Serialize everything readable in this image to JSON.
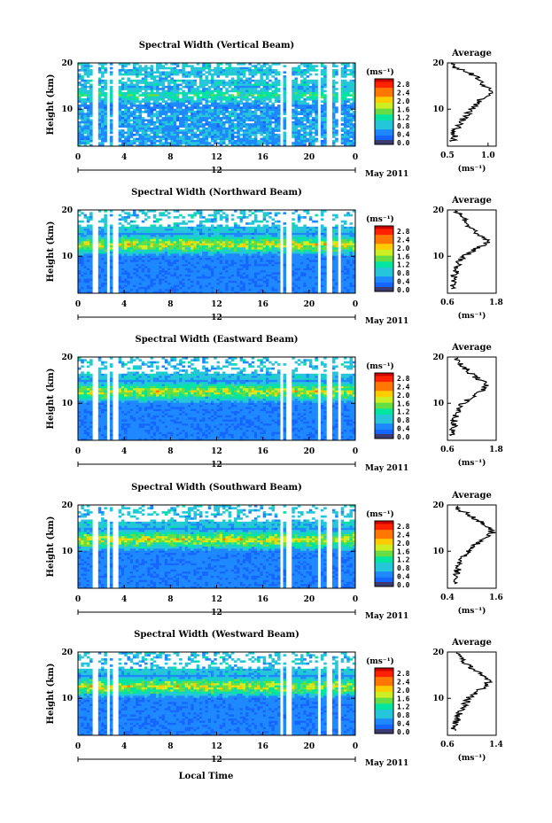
{
  "shared": {
    "x_ticks": [
      "0",
      "4",
      "8",
      "12",
      "16",
      "20",
      "0"
    ],
    "y_ticks": [
      "20",
      "10"
    ],
    "ylabel": "Height (km)",
    "date_label": "May 2011",
    "date_tick": "12",
    "unit_label": "(ms⁻¹)",
    "colorbar_ticks": [
      "2.8",
      "2.4",
      "2.0",
      "1.6",
      "1.2",
      "0.8",
      "0.4",
      "0.0"
    ],
    "avg_title": "Average",
    "avg_xlabel": "(ms⁻¹)",
    "xlabel_bottom": "Local Time",
    "colormap": [
      "#1a237e",
      "#1565ff",
      "#1e88ff",
      "#26c6da",
      "#00e5a0",
      "#66dd44",
      "#ccee22",
      "#ffcc00",
      "#ff7700",
      "#ff2200",
      "#cc0000"
    ]
  },
  "chart_data": [
    {
      "type": "heatmap",
      "title": "Spectral Width (Vertical Beam)",
      "xlabel": "",
      "ylabel": "Height (km)",
      "x_range": [
        0,
        24
      ],
      "y_range": [
        2,
        20
      ],
      "color_range": [
        0.0,
        3.0
      ],
      "average_profile": {
        "title": "Average",
        "xlim": [
          0.5,
          1.1
        ],
        "x_ticks": [
          "0.5",
          "1.0"
        ],
        "x_tick_values": [
          0.5,
          1.0
        ],
        "heights": [
          3,
          4,
          5,
          6,
          7,
          8,
          9,
          10,
          11,
          12,
          13,
          14,
          15,
          16,
          17,
          18,
          19,
          20
        ],
        "values": [
          0.55,
          0.6,
          0.58,
          0.62,
          0.65,
          0.7,
          0.75,
          0.8,
          0.85,
          0.9,
          1.0,
          1.05,
          0.95,
          0.9,
          0.85,
          0.75,
          0.6,
          0.55
        ]
      }
    },
    {
      "type": "heatmap",
      "title": "Spectral Width (Northward Beam)",
      "xlabel": "",
      "ylabel": "Height (km)",
      "x_range": [
        0,
        24
      ],
      "y_range": [
        2,
        20
      ],
      "color_range": [
        0.0,
        3.0
      ],
      "average_profile": {
        "title": "Average",
        "xlim": [
          0.6,
          1.8
        ],
        "x_ticks": [
          "0.6",
          "1.8"
        ],
        "x_tick_values": [
          0.6,
          1.8
        ],
        "heights": [
          3,
          4,
          5,
          6,
          7,
          8,
          9,
          10,
          11,
          12,
          13,
          14,
          15,
          16,
          17,
          18,
          19,
          20
        ],
        "values": [
          0.7,
          0.72,
          0.75,
          0.78,
          0.8,
          0.85,
          0.9,
          1.0,
          1.2,
          1.4,
          1.6,
          1.5,
          1.3,
          1.2,
          1.1,
          1.0,
          0.9,
          0.8
        ]
      }
    },
    {
      "type": "heatmap",
      "title": "Spectral Width (Eastward Beam)",
      "xlabel": "",
      "ylabel": "Height (km)",
      "x_range": [
        0,
        24
      ],
      "y_range": [
        2,
        20
      ],
      "color_range": [
        0.0,
        3.0
      ],
      "average_profile": {
        "title": "Average",
        "xlim": [
          0.6,
          1.8
        ],
        "x_ticks": [
          "0.6",
          "1.8"
        ],
        "x_tick_values": [
          0.6,
          1.8
        ],
        "heights": [
          3,
          4,
          5,
          6,
          7,
          8,
          9,
          10,
          11,
          12,
          13,
          14,
          15,
          16,
          17,
          18,
          19,
          20
        ],
        "values": [
          0.7,
          0.72,
          0.75,
          0.78,
          0.8,
          0.85,
          0.9,
          1.0,
          1.15,
          1.3,
          1.5,
          1.6,
          1.4,
          1.25,
          1.1,
          1.0,
          0.9,
          0.8
        ]
      }
    },
    {
      "type": "heatmap",
      "title": "Spectral Width (Southward Beam)",
      "xlabel": "",
      "ylabel": "Height (km)",
      "x_range": [
        0,
        24
      ],
      "y_range": [
        2,
        20
      ],
      "color_range": [
        0.0,
        3.0
      ],
      "average_profile": {
        "title": "Average",
        "xlim": [
          0.4,
          1.6
        ],
        "x_ticks": [
          "0.4",
          "1.6"
        ],
        "x_tick_values": [
          0.4,
          1.6
        ],
        "heights": [
          3,
          4,
          5,
          6,
          7,
          8,
          9,
          10,
          11,
          12,
          13,
          14,
          15,
          16,
          17,
          18,
          19,
          20
        ],
        "values": [
          0.55,
          0.58,
          0.6,
          0.65,
          0.7,
          0.75,
          0.8,
          0.9,
          1.0,
          1.2,
          1.4,
          1.5,
          1.45,
          1.3,
          1.1,
          0.9,
          0.7,
          0.6
        ]
      }
    },
    {
      "type": "heatmap",
      "title": "Spectral Width (Westward Beam)",
      "xlabel": "Local Time",
      "ylabel": "Height (km)",
      "x_range": [
        0,
        24
      ],
      "y_range": [
        2,
        20
      ],
      "color_range": [
        0.0,
        3.0
      ],
      "average_profile": {
        "title": "Average",
        "xlim": [
          0.6,
          1.4
        ],
        "x_ticks": [
          "0.6",
          "1.4"
        ],
        "x_tick_values": [
          0.6,
          1.4
        ],
        "heights": [
          3,
          4,
          5,
          6,
          7,
          8,
          9,
          10,
          11,
          12,
          13,
          14,
          15,
          16,
          17,
          18,
          19,
          20
        ],
        "values": [
          0.7,
          0.72,
          0.75,
          0.78,
          0.8,
          0.85,
          0.9,
          0.95,
          1.05,
          1.15,
          1.25,
          1.3,
          1.2,
          1.05,
          0.95,
          0.85,
          0.8,
          0.75
        ]
      }
    }
  ]
}
